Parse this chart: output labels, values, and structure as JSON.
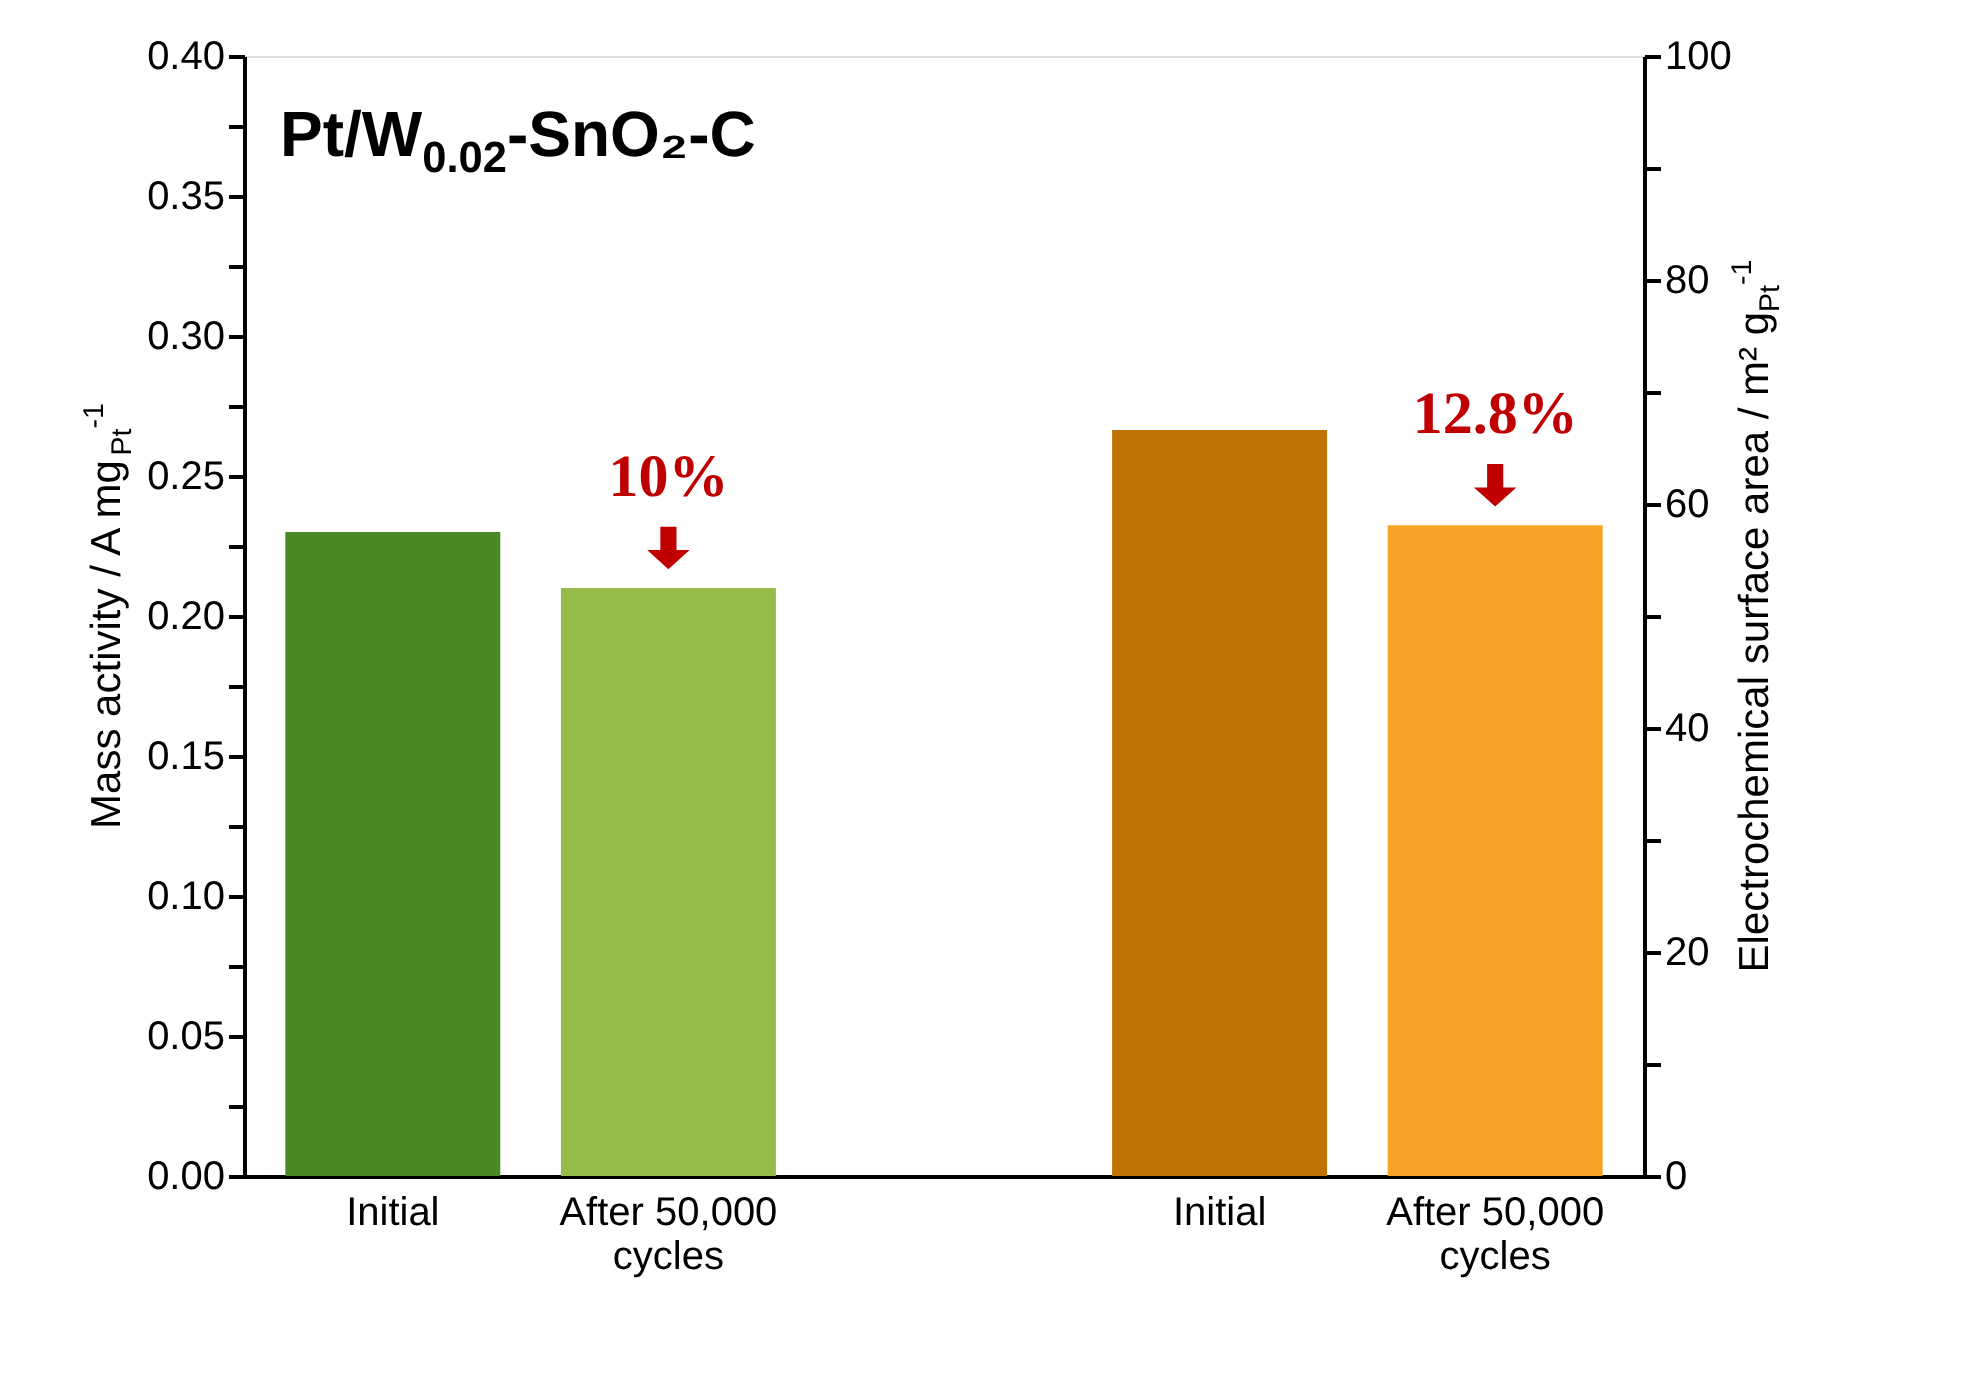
{
  "chart_data": {
    "type": "bar",
    "title": "Pt/W$_{0.02}$-SnO₂-C",
    "ylabel": "Mass activity / A mg$_{Pt}$$^{-1}$",
    "y2label": "Electrochemical surface area / m² g$_{Pt}$$^{-1}$",
    "categories": [
      "Initial",
      "After 50,000 cycles",
      null,
      "Initial",
      "After 50,000 cycles"
    ],
    "series": [
      {
        "colors": [
          "#4a8923",
          "#95bb4a",
          null,
          null,
          null
        ],
        "values": [
          0.23,
          0.21,
          null,
          null,
          null
        ]
      },
      {
        "axis": "y2",
        "colors": [
          null,
          null,
          null,
          "#bd7304",
          "#f8a325"
        ],
        "values": [
          null,
          null,
          null,
          66.6,
          58.1
        ]
      }
    ],
    "ylim": [
      0,
      0.4
    ],
    "yticks": [
      {
        "value": 0,
        "label": "0.00"
      },
      {
        "value": 0.025,
        "label": null
      },
      {
        "value": 0.05,
        "label": "0.05"
      },
      {
        "value": 0.075,
        "label": null
      },
      {
        "value": 0.1,
        "label": "0.10"
      },
      {
        "value": 0.125,
        "label": null
      },
      {
        "value": 0.15,
        "label": "0.15"
      },
      {
        "value": 0.175,
        "label": null
      },
      {
        "value": 0.2,
        "label": "0.20"
      },
      {
        "value": 0.225,
        "label": null
      },
      {
        "value": 0.25,
        "label": "0.25"
      },
      {
        "value": 0.275,
        "label": null
      },
      {
        "value": 0.3,
        "label": "0.30"
      },
      {
        "value": 0.325,
        "label": null
      },
      {
        "value": 0.35,
        "label": "0.35"
      },
      {
        "value": 0.375,
        "label": null
      },
      {
        "value": 0.4,
        "label": "0.40"
      }
    ],
    "y2lim": [
      0,
      100
    ],
    "y2ticks": [
      0,
      {
        "value": 10,
        "label": null
      },
      20,
      {
        "value": 30,
        "label": null
      },
      40,
      {
        "value": 50,
        "label": null
      },
      60,
      {
        "value": 70,
        "label": null
      },
      80,
      {
        "value": 90,
        "label": null
      },
      100
    ],
    "annotations": [
      "10%",
      "12.8%"
    ],
    "grid": false
  }
}
